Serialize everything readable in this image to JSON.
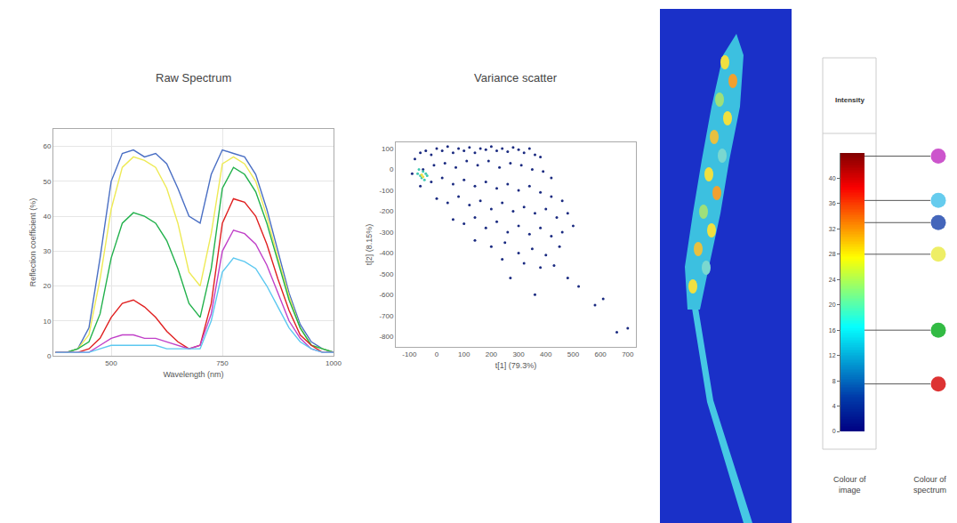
{
  "chart_data": [
    {
      "type": "line",
      "title": "Raw Spectrum",
      "x_label": "Wavelength (nm)",
      "y_label": "Reflection coefficient (%)",
      "x": [
        375,
        400,
        425,
        450,
        475,
        500,
        525,
        550,
        575,
        600,
        625,
        650,
        675,
        700,
        725,
        750,
        775,
        800,
        825,
        850,
        875,
        900,
        925,
        950,
        975,
        1000
      ],
      "series": [
        {
          "color": "#4a6fc4",
          "values": [
            1,
            1,
            2,
            8,
            28,
            50,
            58,
            59,
            57,
            58,
            55,
            48,
            40,
            38,
            52,
            59,
            58,
            57,
            52,
            42,
            30,
            18,
            9,
            4,
            2,
            1
          ]
        },
        {
          "color": "#eeea55",
          "values": [
            1,
            1,
            2,
            6,
            22,
            42,
            54,
            57,
            56,
            54,
            48,
            38,
            24,
            20,
            35,
            55,
            57,
            55,
            50,
            40,
            28,
            17,
            8,
            3,
            2,
            1
          ]
        },
        {
          "color": "#22b14c",
          "values": [
            1,
            1,
            2,
            4,
            12,
            28,
            38,
            41,
            40,
            38,
            33,
            25,
            15,
            11,
            25,
            48,
            54,
            52,
            47,
            38,
            27,
            16,
            8,
            3,
            2,
            1
          ]
        },
        {
          "color": "#e02020",
          "values": [
            1,
            1,
            1,
            2,
            5,
            11,
            15,
            16,
            14,
            11,
            7,
            4,
            2,
            3,
            15,
            38,
            45,
            44,
            40,
            32,
            22,
            13,
            6,
            3,
            1,
            1
          ]
        },
        {
          "color": "#c040c8",
          "values": [
            1,
            1,
            1,
            1,
            3,
            5,
            6,
            6,
            5,
            5,
            4,
            3,
            2,
            3,
            12,
            30,
            36,
            35,
            32,
            26,
            18,
            10,
            5,
            2,
            1,
            1
          ]
        },
        {
          "color": "#5cc8f0",
          "values": [
            1,
            1,
            1,
            1,
            2,
            3,
            3,
            3,
            3,
            3,
            2,
            2,
            2,
            2,
            10,
            24,
            28,
            27,
            25,
            20,
            14,
            8,
            4,
            2,
            1,
            1
          ]
        }
      ],
      "xlim": [
        370,
        1000
      ],
      "xticks": [
        500,
        750,
        1000
      ],
      "ylim": [
        0,
        65
      ],
      "yticks": [
        0,
        10,
        20,
        30,
        40,
        50,
        60
      ],
      "grid": true
    },
    {
      "type": "scatter",
      "title": "Variance scatter",
      "x_label": "t[1] (79.3%)",
      "y_label": "t[2] (8.15%)",
      "series": [
        {
          "color": "#1a2a80",
          "x": [
            -80,
            -60,
            -40,
            -20,
            0,
            20,
            40,
            60,
            80,
            100,
            120,
            140,
            160,
            180,
            200,
            220,
            240,
            260,
            280,
            300,
            320,
            340,
            360,
            380,
            -90,
            -50,
            -10,
            30,
            70,
            110,
            150,
            190,
            230,
            270,
            310,
            350,
            390,
            420,
            -60,
            -20,
            20,
            60,
            100,
            140,
            180,
            220,
            260,
            300,
            340,
            380,
            420,
            460,
            0,
            40,
            80,
            120,
            160,
            200,
            240,
            280,
            320,
            360,
            400,
            440,
            480,
            60,
            100,
            140,
            180,
            220,
            260,
            300,
            340,
            380,
            420,
            460,
            500,
            140,
            200,
            250,
            300,
            350,
            400,
            450,
            320,
            380,
            270,
            360,
            480,
            520,
            580,
            610,
            700,
            660,
            240,
            430
          ],
          "values": [
            50,
            80,
            90,
            70,
            100,
            90,
            110,
            80,
            100,
            90,
            105,
            80,
            100,
            95,
            110,
            90,
            100,
            85,
            105,
            95,
            80,
            100,
            70,
            60,
            -20,
            0,
            20,
            30,
            10,
            40,
            20,
            40,
            10,
            30,
            20,
            0,
            -10,
            -40,
            -80,
            -60,
            -40,
            -70,
            -50,
            -80,
            -60,
            -90,
            -70,
            -100,
            -80,
            -110,
            -130,
            -150,
            -140,
            -160,
            -130,
            -170,
            -150,
            -190,
            -160,
            -200,
            -180,
            -210,
            -190,
            -230,
            -210,
            -240,
            -260,
            -230,
            -280,
            -250,
            -300,
            -270,
            -310,
            -280,
            -320,
            -300,
            -270,
            -340,
            -370,
            -350,
            -400,
            -380,
            -410,
            -370,
            -450,
            -470,
            -520,
            -600,
            -520,
            -560,
            -650,
            -620,
            -760,
            -780,
            -430,
            -460
          ]
        },
        {
          "color": "#40c8b0",
          "x": [
            -70,
            -60,
            -50,
            -55,
            -40,
            -65,
            -45,
            -35
          ],
          "values": [
            -20,
            -30,
            -10,
            -40,
            -20,
            0,
            -50,
            -30
          ]
        },
        {
          "color": "#f0e040",
          "x": [
            -55,
            -50
          ],
          "values": [
            -25,
            -35
          ]
        }
      ],
      "xlim": [
        -150,
        730
      ],
      "xticks": [
        -100,
        0,
        100,
        200,
        300,
        400,
        500,
        600,
        700
      ],
      "ylim": [
        -850,
        130
      ],
      "yticks": [
        100,
        0,
        -100,
        -200,
        -300,
        -400,
        -500,
        -600,
        -700,
        -800
      ],
      "grid": false
    },
    {
      "type": "colorbar",
      "title": "Intensity",
      "color": "Jet",
      "ylim": [
        0,
        44
      ],
      "yticks": [
        0,
        4,
        8,
        12,
        16,
        20,
        24,
        28,
        32,
        36,
        40
      ],
      "levels": [
        {
          "value": 43.5,
          "color": "#cc55cc"
        },
        {
          "value": 36.5,
          "color": "#66ccee"
        },
        {
          "value": 33,
          "color": "#4466bb"
        },
        {
          "value": 28,
          "color": "#eeee66"
        },
        {
          "value": 16,
          "color": "#33bb44"
        },
        {
          "value": 7.5,
          "color": "#dd3333"
        }
      ],
      "categories": [
        "Colour of image",
        "Colour of spectrum"
      ]
    }
  ]
}
